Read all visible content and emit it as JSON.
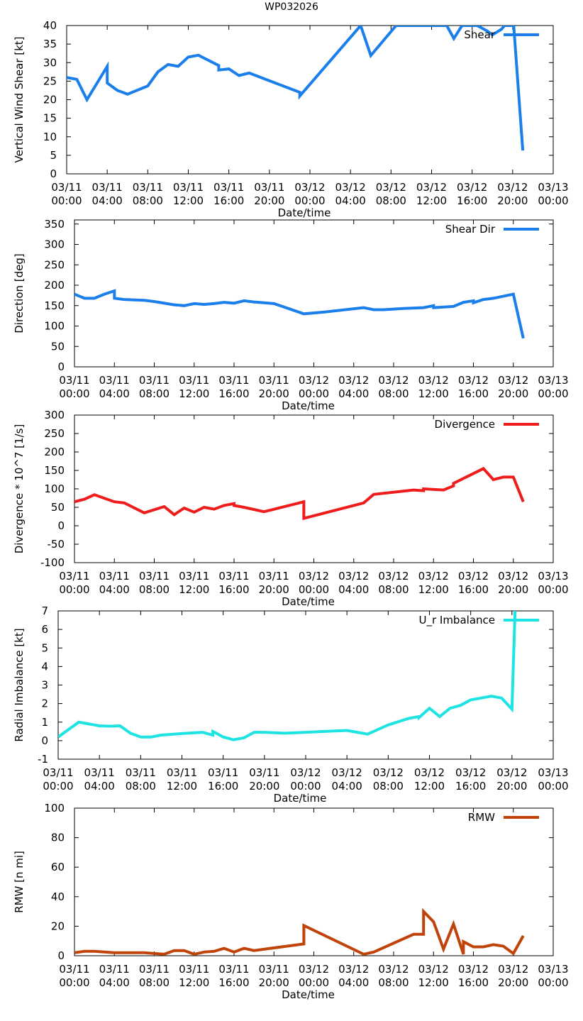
{
  "page_title": "WP032026",
  "chart_data": [
    {
      "type": "line",
      "title": "",
      "xlabel": "Date/time",
      "ylabel": "Vertical Wind Shear [kt]",
      "xlim": [
        0,
        48
      ],
      "ylim": [
        0,
        40
      ],
      "yticks": [
        0,
        5,
        10,
        15,
        20,
        25,
        30,
        35,
        40
      ],
      "xticks": [
        0,
        4,
        8,
        12,
        16,
        20,
        24,
        28,
        32,
        36,
        40,
        44,
        48
      ],
      "xticklabels": [
        [
          "03/11",
          "00:00"
        ],
        [
          "03/11",
          "04:00"
        ],
        [
          "03/11",
          "08:00"
        ],
        [
          "03/11",
          "12:00"
        ],
        [
          "03/11",
          "16:00"
        ],
        [
          "03/11",
          "20:00"
        ],
        [
          "03/12",
          "00:00"
        ],
        [
          "03/12",
          "04:00"
        ],
        [
          "03/12",
          "08:00"
        ],
        [
          "03/12",
          "12:00"
        ],
        [
          "03/12",
          "16:00"
        ],
        [
          "03/12",
          "20:00"
        ],
        [
          "03/13",
          "00:00"
        ]
      ],
      "grid": false,
      "legend": "top-right",
      "series": [
        {
          "name": "Shear",
          "color": "#1a7fea",
          "x": [
            0,
            1,
            2,
            4,
            4,
            5,
            6,
            8,
            9,
            10,
            11,
            12,
            13,
            15,
            15,
            16,
            17,
            18,
            23,
            23,
            29,
            30,
            32.5,
            33,
            37.5,
            38.2,
            39,
            40.5,
            41.5,
            42,
            42.9,
            43.2,
            44.1,
            45
          ],
          "y": [
            26,
            25.5,
            20,
            29,
            24.5,
            22.5,
            21.5,
            23.7,
            27.5,
            29.5,
            29,
            31.5,
            32,
            29.2,
            28,
            28.3,
            26.5,
            27.2,
            22,
            21,
            40,
            31.9,
            40,
            40,
            40,
            36.5,
            40,
            40,
            38.5,
            37.5,
            39,
            40,
            40,
            6.3
          ]
        }
      ]
    },
    {
      "type": "line",
      "title": "",
      "xlabel": "Date/time",
      "ylabel": "Direction [deg]",
      "xlim": [
        0,
        48
      ],
      "ylim": [
        0,
        360
      ],
      "yticks": [
        0,
        50,
        100,
        150,
        200,
        250,
        300,
        350
      ],
      "xticks": [
        0,
        4,
        8,
        12,
        16,
        20,
        24,
        28,
        32,
        36,
        40,
        44,
        48
      ],
      "xticklabels": [
        [
          "03/11",
          "00:00"
        ],
        [
          "03/11",
          "04:00"
        ],
        [
          "03/11",
          "08:00"
        ],
        [
          "03/11",
          "12:00"
        ],
        [
          "03/11",
          "16:00"
        ],
        [
          "03/11",
          "20:00"
        ],
        [
          "03/12",
          "00:00"
        ],
        [
          "03/12",
          "04:00"
        ],
        [
          "03/12",
          "08:00"
        ],
        [
          "03/12",
          "12:00"
        ],
        [
          "03/12",
          "16:00"
        ],
        [
          "03/12",
          "20:00"
        ],
        [
          "03/13",
          "00:00"
        ]
      ],
      "grid": false,
      "legend": "top-right",
      "series": [
        {
          "name": "Shear Dir",
          "color": "#1a7fea",
          "x": [
            0,
            1,
            2,
            3,
            4,
            4,
            5,
            7,
            8,
            10,
            11,
            12,
            13,
            14,
            15,
            16,
            17,
            18,
            20,
            23,
            25,
            29,
            30,
            31,
            33,
            35,
            36,
            36,
            38,
            39,
            40,
            40,
            41,
            42,
            44,
            45
          ],
          "y": [
            178,
            168,
            168,
            178,
            186,
            168,
            165,
            163,
            160,
            152,
            150,
            155,
            153,
            155,
            158,
            156,
            162,
            159,
            155,
            130,
            134,
            145,
            140,
            140,
            143,
            145,
            150,
            145,
            148,
            158,
            162,
            157,
            165,
            168,
            178,
            70
          ]
        }
      ]
    },
    {
      "type": "line",
      "title": "",
      "xlabel": "Date/time",
      "ylabel": "Divergence * 10^7 [1/s]",
      "xlim": [
        0,
        48
      ],
      "ylim": [
        -100,
        300
      ],
      "yticks": [
        -100,
        -50,
        0,
        50,
        100,
        150,
        200,
        250,
        300
      ],
      "xticks": [
        0,
        4,
        8,
        12,
        16,
        20,
        24,
        28,
        32,
        36,
        40,
        44,
        48
      ],
      "xticklabels": [
        [
          "03/11",
          "00:00"
        ],
        [
          "03/11",
          "04:00"
        ],
        [
          "03/11",
          "08:00"
        ],
        [
          "03/11",
          "12:00"
        ],
        [
          "03/11",
          "16:00"
        ],
        [
          "03/11",
          "20:00"
        ],
        [
          "03/12",
          "00:00"
        ],
        [
          "03/12",
          "04:00"
        ],
        [
          "03/12",
          "08:00"
        ],
        [
          "03/12",
          "12:00"
        ],
        [
          "03/12",
          "16:00"
        ],
        [
          "03/12",
          "20:00"
        ],
        [
          "03/13",
          "00:00"
        ]
      ],
      "grid": false,
      "legend": "top-right",
      "series": [
        {
          "name": "Divergence",
          "color": "#ef1c1c",
          "x": [
            0,
            1,
            2,
            4,
            5,
            7,
            9,
            10,
            11,
            12,
            13,
            14,
            15,
            16,
            16,
            17,
            19,
            23,
            23,
            29,
            30,
            34,
            35,
            35,
            37,
            38,
            38,
            41,
            42,
            43,
            44,
            45
          ],
          "y": [
            65,
            72,
            84,
            65,
            62,
            35,
            52,
            30,
            48,
            37,
            50,
            45,
            55,
            60,
            55,
            50,
            38,
            65,
            20,
            62,
            85,
            97,
            95,
            100,
            97,
            108,
            115,
            155,
            125,
            132,
            132,
            65
          ]
        }
      ]
    },
    {
      "type": "line",
      "title": "",
      "xlabel": "Date/time",
      "ylabel": "Radial Imbalance [kt]",
      "xlim": [
        0,
        48
      ],
      "ylim": [
        -1,
        7
      ],
      "yticks": [
        -1,
        0,
        1,
        2,
        3,
        4,
        5,
        6,
        7
      ],
      "xticks": [
        0,
        4,
        8,
        12,
        16,
        20,
        24,
        28,
        32,
        36,
        40,
        44,
        48
      ],
      "xticklabels": [
        [
          "03/11",
          "00:00"
        ],
        [
          "03/11",
          "04:00"
        ],
        [
          "03/11",
          "08:00"
        ],
        [
          "03/11",
          "12:00"
        ],
        [
          "03/11",
          "16:00"
        ],
        [
          "03/11",
          "20:00"
        ],
        [
          "03/12",
          "00:00"
        ],
        [
          "03/12",
          "04:00"
        ],
        [
          "03/12",
          "08:00"
        ],
        [
          "03/12",
          "12:00"
        ],
        [
          "03/12",
          "16:00"
        ],
        [
          "03/12",
          "20:00"
        ],
        [
          "03/13",
          "00:00"
        ]
      ],
      "grid": false,
      "legend": "top-right",
      "series": [
        {
          "name": "U_r Imbalance",
          "color": "#1de3e3",
          "x": [
            0,
            2,
            4,
            5,
            6,
            7,
            8,
            9,
            10,
            12,
            14,
            15,
            15,
            16,
            17,
            18,
            19,
            20,
            22,
            24,
            26,
            28,
            30,
            31,
            32,
            34,
            35,
            35,
            36,
            37,
            38,
            39,
            39.5,
            40,
            41,
            42,
            43,
            44,
            44.3
          ],
          "y": [
            0.2,
            1.0,
            0.8,
            0.78,
            0.8,
            0.4,
            0.2,
            0.2,
            0.3,
            0.38,
            0.45,
            0.3,
            0.5,
            0.2,
            0.05,
            0.15,
            0.45,
            0.45,
            0.4,
            0.45,
            0.5,
            0.55,
            0.35,
            0.6,
            0.85,
            1.2,
            1.3,
            1.25,
            1.75,
            1.3,
            1.75,
            1.9,
            2.05,
            2.2,
            2.3,
            2.4,
            2.3,
            1.7,
            7.0
          ]
        }
      ]
    },
    {
      "type": "line",
      "title": "",
      "xlabel": "Date/time",
      "ylabel": "RMW [n mi]",
      "xlim": [
        0,
        48
      ],
      "ylim": [
        0,
        100
      ],
      "yticks": [
        0,
        20,
        40,
        60,
        80,
        100
      ],
      "xticks": [
        0,
        4,
        8,
        12,
        16,
        20,
        24,
        28,
        32,
        36,
        40,
        44,
        48
      ],
      "xticklabels": [
        [
          "03/11",
          "00:00"
        ],
        [
          "03/11",
          "04:00"
        ],
        [
          "03/11",
          "08:00"
        ],
        [
          "03/11",
          "12:00"
        ],
        [
          "03/11",
          "16:00"
        ],
        [
          "03/11",
          "20:00"
        ],
        [
          "03/12",
          "00:00"
        ],
        [
          "03/12",
          "04:00"
        ],
        [
          "03/12",
          "08:00"
        ],
        [
          "03/12",
          "12:00"
        ],
        [
          "03/12",
          "16:00"
        ],
        [
          "03/12",
          "20:00"
        ],
        [
          "03/13",
          "00:00"
        ]
      ],
      "grid": false,
      "legend": "top-right",
      "series": [
        {
          "name": "RMW",
          "color": "#c0440a",
          "x": [
            0,
            1,
            2,
            4,
            5,
            7,
            9,
            10,
            11,
            12,
            13,
            14,
            15,
            16,
            17,
            18,
            23,
            23,
            29,
            30,
            34,
            35,
            35,
            36,
            37,
            38,
            39,
            39,
            40,
            41,
            42,
            43,
            44,
            45
          ],
          "y": [
            2,
            3,
            3,
            2,
            2,
            2,
            1,
            3.5,
            3.5,
            1,
            2.5,
            3,
            5,
            2.5,
            5,
            3.5,
            8,
            20.5,
            1,
            2.5,
            14.5,
            14.5,
            30,
            23,
            4.5,
            21.5,
            1,
            9.5,
            6,
            6,
            7.5,
            6.5,
            1.5,
            13.5
          ]
        }
      ]
    }
  ]
}
